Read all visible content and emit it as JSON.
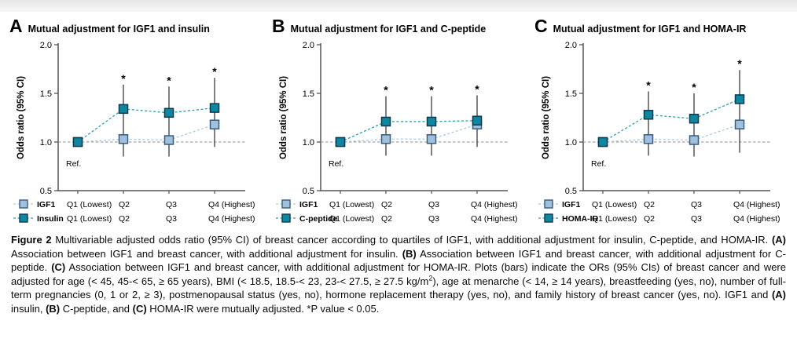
{
  "colors": {
    "igf1": {
      "fill": "#9FC1DE",
      "border": "#3C5C7D",
      "line": "#A9CBE2"
    },
    "accent": {
      "fill": "#0F87A0",
      "border": "#0B3B50",
      "line": "#2BA0B5"
    },
    "error_bar": "#4A4A4D",
    "axis": "#555557",
    "ref_line": "#8F8F8F",
    "text": "#000000"
  },
  "chart_data": [
    {
      "type": "scatter",
      "panel": "A",
      "title": "Mutual adjustment for IGF1 and insulin",
      "ylabel": "Odds ratio (95% CI)",
      "ylim": [
        0.5,
        2.0
      ],
      "yticks": [
        "2.0",
        "1.5",
        "1.0",
        "0.5"
      ],
      "ref_line_y": 1.0,
      "categories": [
        "Q1 (Lowest)",
        "Q2",
        "Q3",
        "Q4 (Highest)"
      ],
      "series": [
        {
          "name": "IGF1",
          "role": "igf1",
          "values": [
            1.0,
            1.03,
            1.02,
            1.18
          ]
        },
        {
          "name": "Insulin",
          "role": "accent",
          "values": [
            1.0,
            1.34,
            1.3,
            1.35
          ]
        }
      ],
      "error_bars": [
        {
          "category": "Q2",
          "low": 0.85,
          "high": 1.59
        },
        {
          "category": "Q3",
          "low": 0.85,
          "high": 1.57
        },
        {
          "category": "Q4",
          "low": 0.95,
          "high": 1.66
        }
      ],
      "significant": [
        "Q2",
        "Q3",
        "Q4"
      ],
      "sig_symbol": "*",
      "ref_label": "Ref."
    },
    {
      "type": "scatter",
      "panel": "B",
      "title": "Mutual adjustment for IGF1 and C-peptide",
      "ylabel": "Odds ratio (95% CI)",
      "ylim": [
        0.5,
        2.0
      ],
      "yticks": [
        "2.0",
        "1.5",
        "1.0",
        "0.5"
      ],
      "ref_line_y": 1.0,
      "categories": [
        "Q1 (Lowest)",
        "Q2",
        "Q3",
        "Q4 (Highest)"
      ],
      "series": [
        {
          "name": "IGF1",
          "role": "igf1",
          "values": [
            1.0,
            1.03,
            1.03,
            1.18
          ]
        },
        {
          "name": "C-peptide",
          "role": "accent",
          "values": [
            1.0,
            1.21,
            1.21,
            1.22
          ]
        }
      ],
      "error_bars": [
        {
          "category": "Q2",
          "low": 0.86,
          "high": 1.47
        },
        {
          "category": "Q3",
          "low": 0.86,
          "high": 1.47
        },
        {
          "category": "Q4",
          "low": 0.95,
          "high": 1.48
        }
      ],
      "significant": [
        "Q2",
        "Q3",
        "Q4"
      ],
      "sig_symbol": "*",
      "ref_label": "Ref."
    },
    {
      "type": "scatter",
      "panel": "C",
      "title": "Mutual adjustment for IGF1 and HOMA-IR",
      "ylabel": "Odds ratio (95% CI)",
      "ylim": [
        0.5,
        2.0
      ],
      "yticks": [
        "2.0",
        "1.5",
        "1.0",
        "0.5"
      ],
      "ref_line_y": 1.0,
      "categories": [
        "Q1 (Lowest)",
        "Q2",
        "Q3",
        "Q4 (Highest)"
      ],
      "series": [
        {
          "name": "IGF1",
          "role": "igf1",
          "values": [
            1.0,
            1.03,
            1.02,
            1.18
          ]
        },
        {
          "name": "HOMA-IR",
          "role": "accent",
          "values": [
            1.0,
            1.28,
            1.24,
            1.44
          ]
        }
      ],
      "error_bars": [
        {
          "category": "Q2",
          "low": 0.86,
          "high": 1.52
        },
        {
          "category": "Q3",
          "low": 0.85,
          "high": 1.5
        },
        {
          "category": "Q4",
          "low": 0.89,
          "high": 1.74
        }
      ],
      "significant": [
        "Q2",
        "Q3",
        "Q4"
      ],
      "sig_symbol": "*",
      "ref_label": "Ref."
    }
  ],
  "caption": {
    "segments": [
      {
        "t": "Figure 2",
        "b": true
      },
      {
        "t": " Multivariable adjusted odds ratio (95% CI) of breast cancer according to quartiles of IGF1, with additional adjustment for insulin, C-peptide, and HOMA-IR. "
      },
      {
        "t": "(A)",
        "b": true
      },
      {
        "t": " Association between IGF1 and breast cancer, with additional adjustment for insulin. "
      },
      {
        "t": "(B)",
        "b": true
      },
      {
        "t": " Association between IGF1 and breast cancer, with additional adjustment for C-peptide. "
      },
      {
        "t": "(C)",
        "b": true
      },
      {
        "t": " Association between IGF1 and breast cancer, with additional adjustment for HOMA-IR. Plots (bars) indicate the ORs (95% CIs) of breast cancer and were adjusted for age (< 45, 45-< 65, ≥ 65 years), BMI (< 18.5, 18.5-< 23, 23-< 27.5, ≥ 27.5 kg/m"
      },
      {
        "t": "2",
        "sup": true
      },
      {
        "t": "), age at menarche (< 14, ≥ 14 years), breastfeeding (yes, no), number of full-term pregnancies (0, 1 or 2, ≥ 3), postmenopausal status (yes, no), hormone replacement therapy (yes, no), and family history of breast cancer (yes, no). IGF1 and "
      },
      {
        "t": "(A)",
        "b": true
      },
      {
        "t": " insulin, "
      },
      {
        "t": "(B)",
        "b": true
      },
      {
        "t": " C-peptide, and "
      },
      {
        "t": "(C)",
        "b": true
      },
      {
        "t": " HOMA-IR were mutually adjusted. *P value < 0.05."
      }
    ]
  }
}
